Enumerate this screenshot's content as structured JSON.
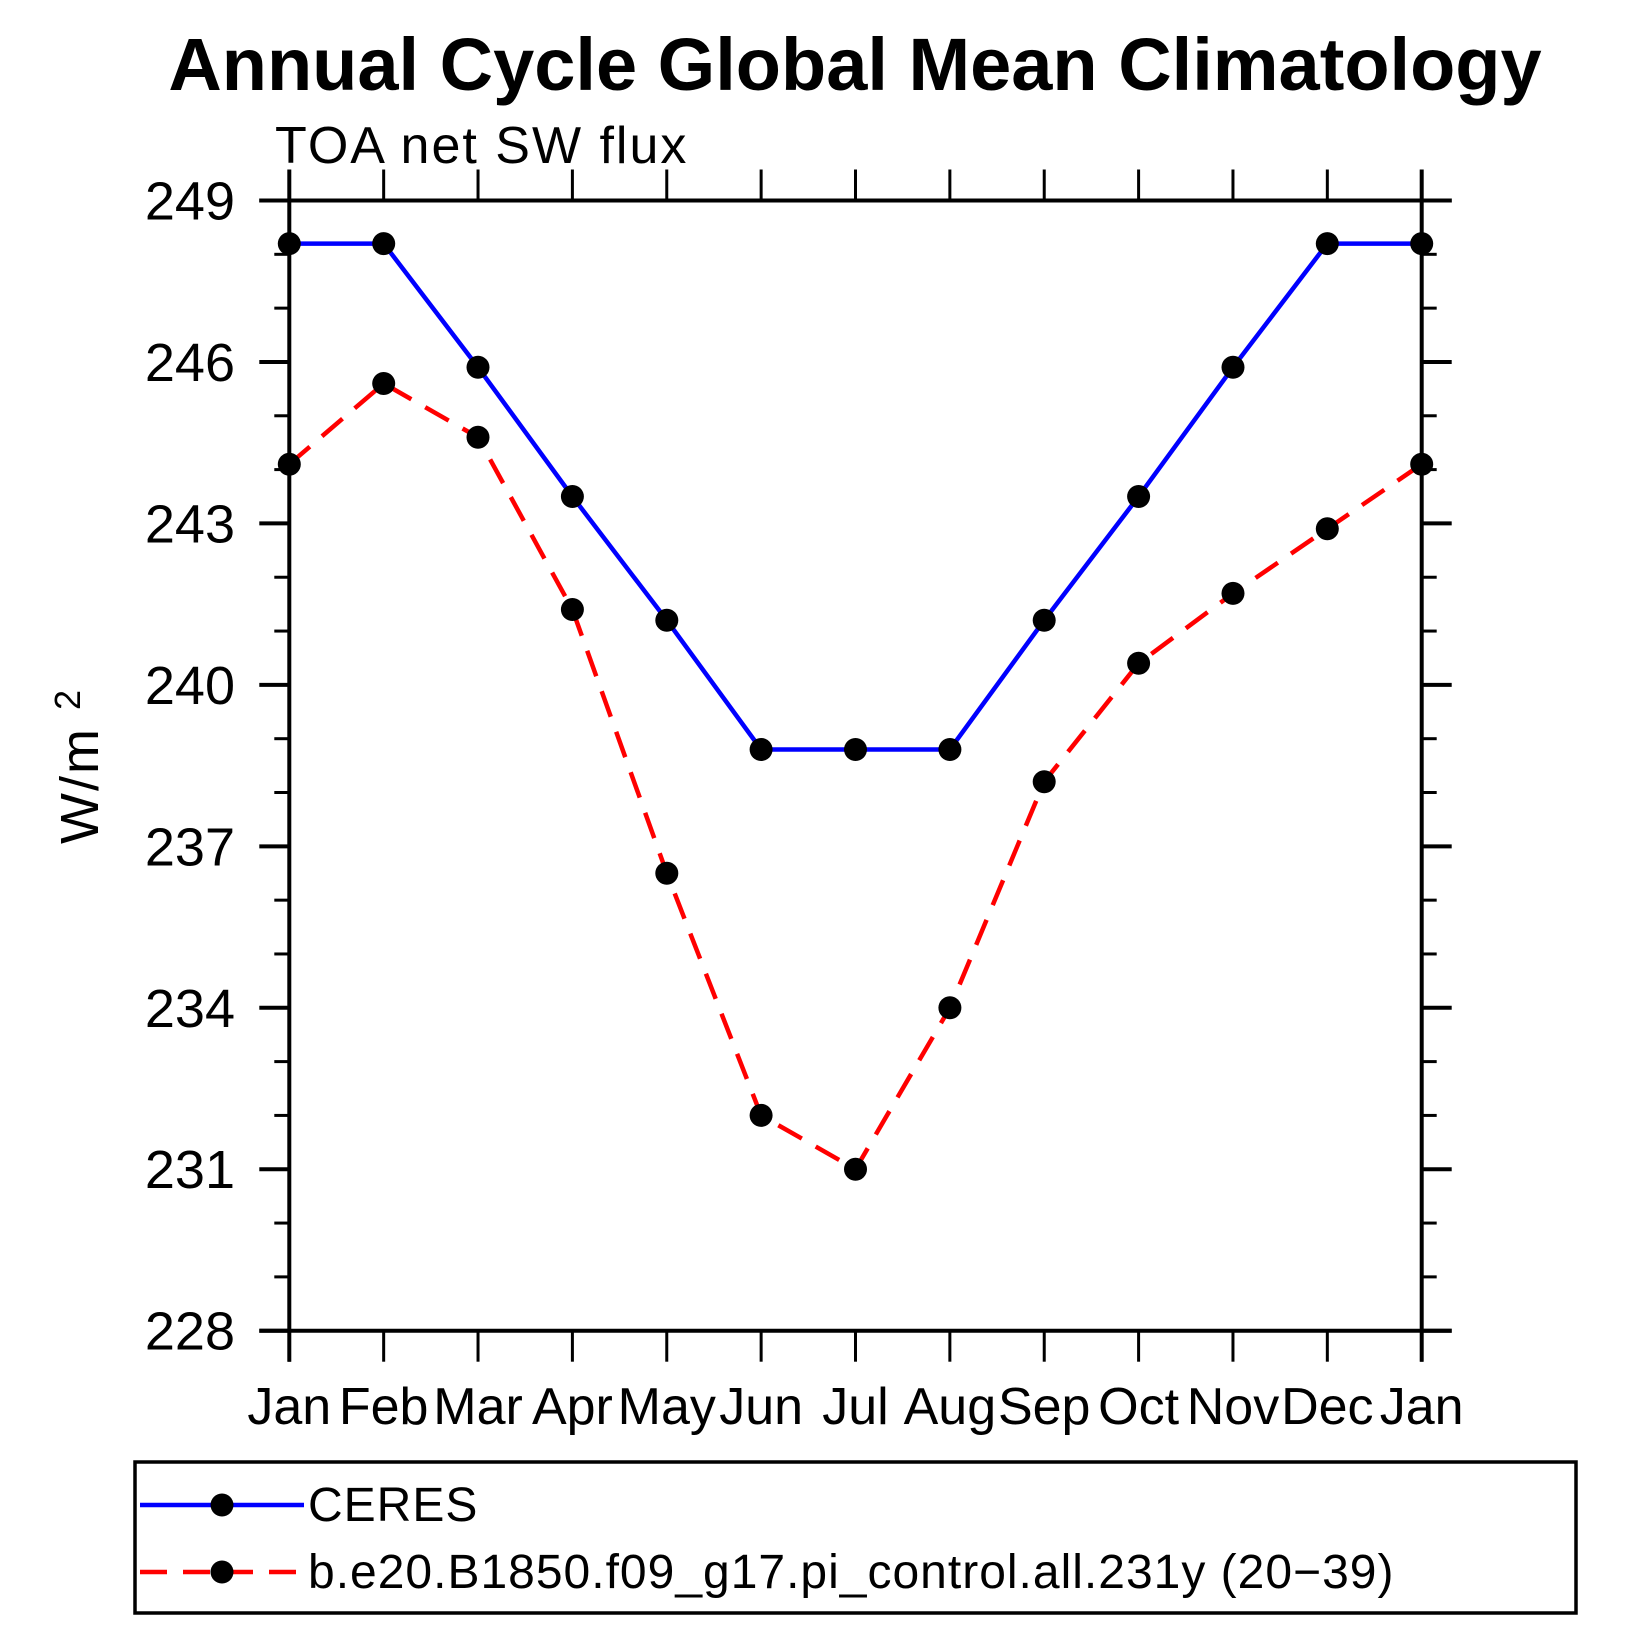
{
  "title": "Annual Cycle Global Mean Climatology",
  "subtitle": "TOA net SW flux",
  "y_axis_unit": {
    "base": "W/m",
    "exponent": "2"
  },
  "colors": {
    "ceres_line": "#0000ff",
    "model_line": "#ff0000",
    "marker": "#000000",
    "axis": "#000000"
  },
  "chart_data": {
    "type": "line",
    "title": "Annual Cycle Global Mean Climatology",
    "subtitle": "TOA net SW flux",
    "xlabel": "",
    "ylabel": "W/m^2",
    "categories": [
      "Jan",
      "Feb",
      "Mar",
      "Apr",
      "May",
      "Jun",
      "Jul",
      "Aug",
      "Sep",
      "Oct",
      "Nov",
      "Dec",
      "Jan"
    ],
    "ylim": [
      228,
      249
    ],
    "y_ticks_major": [
      228,
      231,
      234,
      237,
      240,
      243,
      246,
      249
    ],
    "y_minor_step": 1,
    "grid": false,
    "legend_position": "bottom",
    "series": [
      {
        "name": "CERES",
        "color": "#0000ff",
        "line_style": "solid",
        "marker": "circle",
        "marker_color": "#000000",
        "values": [
          248.2,
          248.2,
          245.9,
          243.5,
          241.2,
          238.8,
          238.8,
          238.8,
          241.2,
          243.5,
          245.9,
          248.2,
          248.2
        ]
      },
      {
        "name": "b.e20.B1850.f09_g17.pi_control.all.231y (20−39)",
        "color": "#ff0000",
        "line_style": "dashed",
        "marker": "circle",
        "marker_color": "#000000",
        "values": [
          244.1,
          245.6,
          244.6,
          241.4,
          236.5,
          232.0,
          231.0,
          234.0,
          238.2,
          240.4,
          241.7,
          242.9,
          244.1
        ]
      }
    ]
  }
}
